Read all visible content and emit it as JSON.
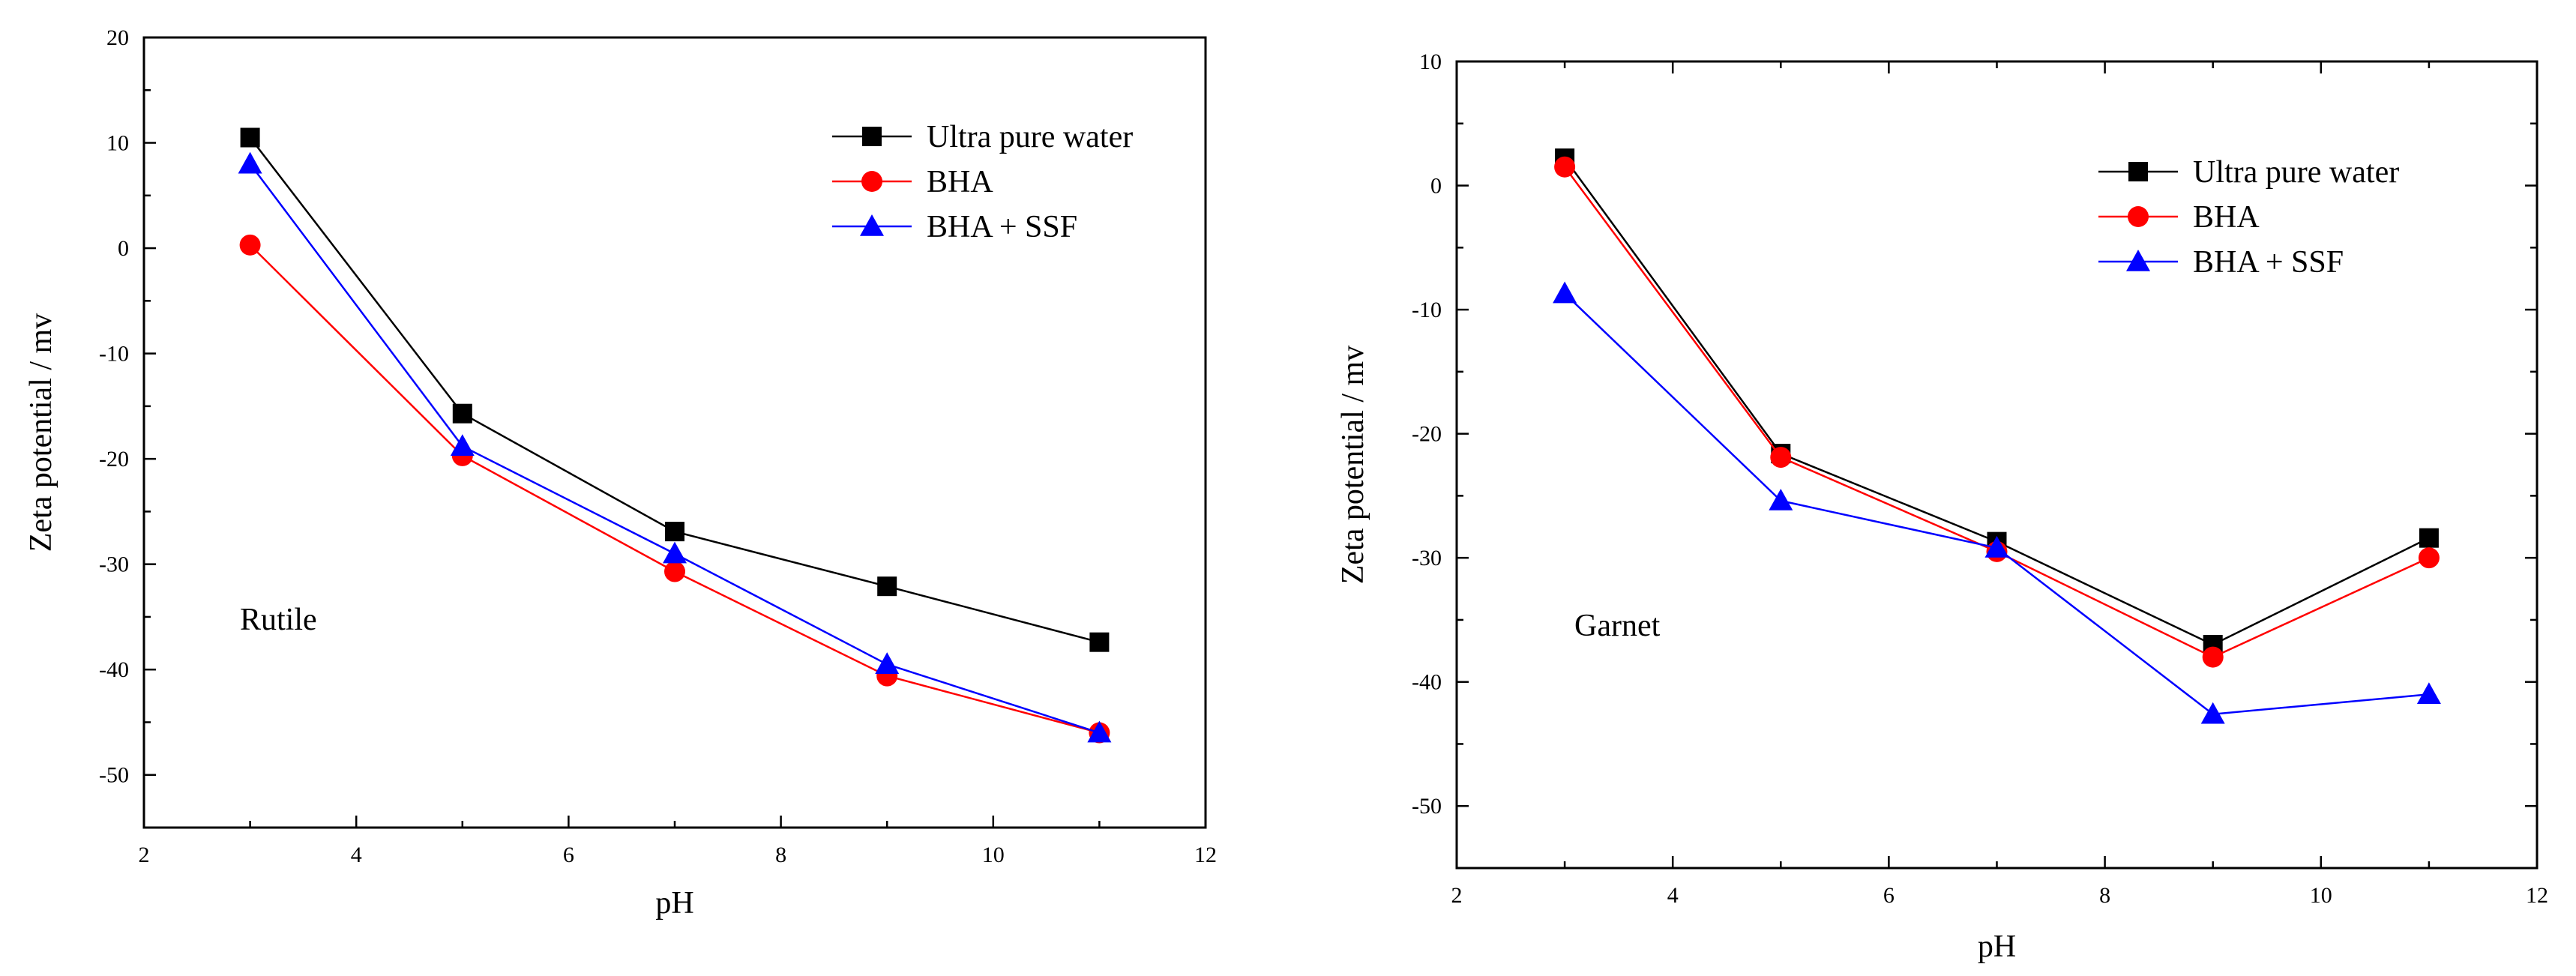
{
  "chart_data": [
    {
      "type": "line",
      "annotation": "Rutile",
      "xlabel": "pH",
      "ylabel": "Zeta potential / mv",
      "xlim": [
        2,
        12
      ],
      "ylim": [
        -55,
        20
      ],
      "xticks": [
        2,
        4,
        6,
        8,
        10,
        12
      ],
      "yticks": [
        20,
        10,
        0,
        -10,
        -20,
        -30,
        -40,
        -50
      ],
      "x": [
        3,
        5,
        7,
        9,
        11
      ],
      "series": [
        {
          "name": "Ultra pure water",
          "color": "#000000",
          "marker": "square",
          "values": [
            10.5,
            -15.7,
            -26.9,
            -32.1,
            -37.4
          ]
        },
        {
          "name": "BHA",
          "color": "#ff0000",
          "marker": "circle",
          "values": [
            0.3,
            -19.7,
            -30.7,
            -40.6,
            -46.0
          ]
        },
        {
          "name": "BHA + SSF",
          "color": "#0000ff",
          "marker": "triangle",
          "values": [
            8.0,
            -18.8,
            -29.0,
            -39.5,
            -46.0
          ]
        }
      ],
      "legend_position": "top-right"
    },
    {
      "type": "line",
      "annotation": "Garnet",
      "xlabel": "pH",
      "ylabel": "Zeta potential / mv",
      "xlim": [
        2,
        12
      ],
      "ylim": [
        -55,
        10
      ],
      "xticks": [
        2,
        4,
        6,
        8,
        10,
        12
      ],
      "yticks": [
        10,
        0,
        -10,
        -20,
        -30,
        -40,
        -50
      ],
      "x": [
        3,
        5,
        7,
        9,
        11
      ],
      "series": [
        {
          "name": "Ultra pure water",
          "color": "#000000",
          "marker": "square",
          "values": [
            2.2,
            -21.6,
            -28.7,
            -37.0,
            -28.4
          ]
        },
        {
          "name": "BHA",
          "color": "#ff0000",
          "marker": "circle",
          "values": [
            1.5,
            -21.9,
            -29.5,
            -38.0,
            -30.0
          ]
        },
        {
          "name": "BHA + SSF",
          "color": "#0000ff",
          "marker": "triangle",
          "values": [
            -8.7,
            -25.4,
            -29.2,
            -42.6,
            -41.0
          ]
        }
      ],
      "legend_position": "top-right"
    }
  ]
}
